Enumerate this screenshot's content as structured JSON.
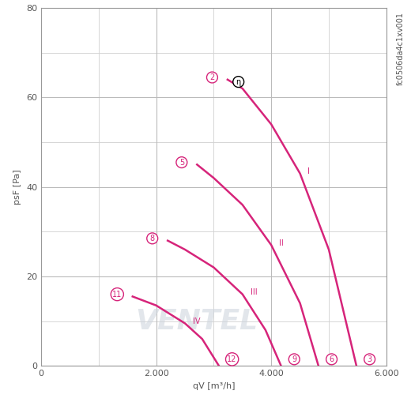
{
  "chart_data": {
    "type": "line",
    "x_label": "qV [m³/h]",
    "y_label": "psF [Pa]",
    "corner_text": "fc0506da4c1xv001",
    "xlim": [
      0,
      6000
    ],
    "xticks": [
      0,
      {
        "value": 2000,
        "label": "2.000"
      },
      {
        "value": 4000,
        "label": "4.000"
      },
      {
        "value": 6000,
        "label": "6.000"
      }
    ],
    "ylim": [
      0,
      80
    ],
    "yticks": [
      0,
      20,
      40,
      60,
      80
    ],
    "grid": true,
    "color": "#d6247a",
    "series": [
      {
        "name": "I",
        "start_label": "2",
        "end_label": "3",
        "x": [
          3240,
          3500,
          4000,
          4500,
          5000,
          5480
        ],
        "values": [
          64,
          62,
          54,
          43,
          26,
          0
        ]
      },
      {
        "name": "II",
        "start_label": "5",
        "end_label": "6",
        "x": [
          2710,
          3000,
          3500,
          4000,
          4500,
          4820
        ],
        "values": [
          45,
          42,
          36,
          27,
          14,
          0
        ]
      },
      {
        "name": "III",
        "start_label": "8",
        "end_label": "9",
        "x": [
          2200,
          2500,
          3000,
          3500,
          3900,
          4170
        ],
        "values": [
          28,
          26,
          22,
          16,
          8,
          0
        ]
      },
      {
        "name": "IV",
        "start_label": "11",
        "end_label": "12",
        "x": [
          1590,
          2000,
          2500,
          2800,
          3090
        ],
        "values": [
          15.5,
          13.5,
          9.5,
          6,
          0
        ]
      }
    ],
    "annotations": [
      {
        "text": "η",
        "x": 3430,
        "y": 63.5
      },
      {
        "text": "VENTEL",
        "x": 2700,
        "y": 10
      }
    ]
  }
}
